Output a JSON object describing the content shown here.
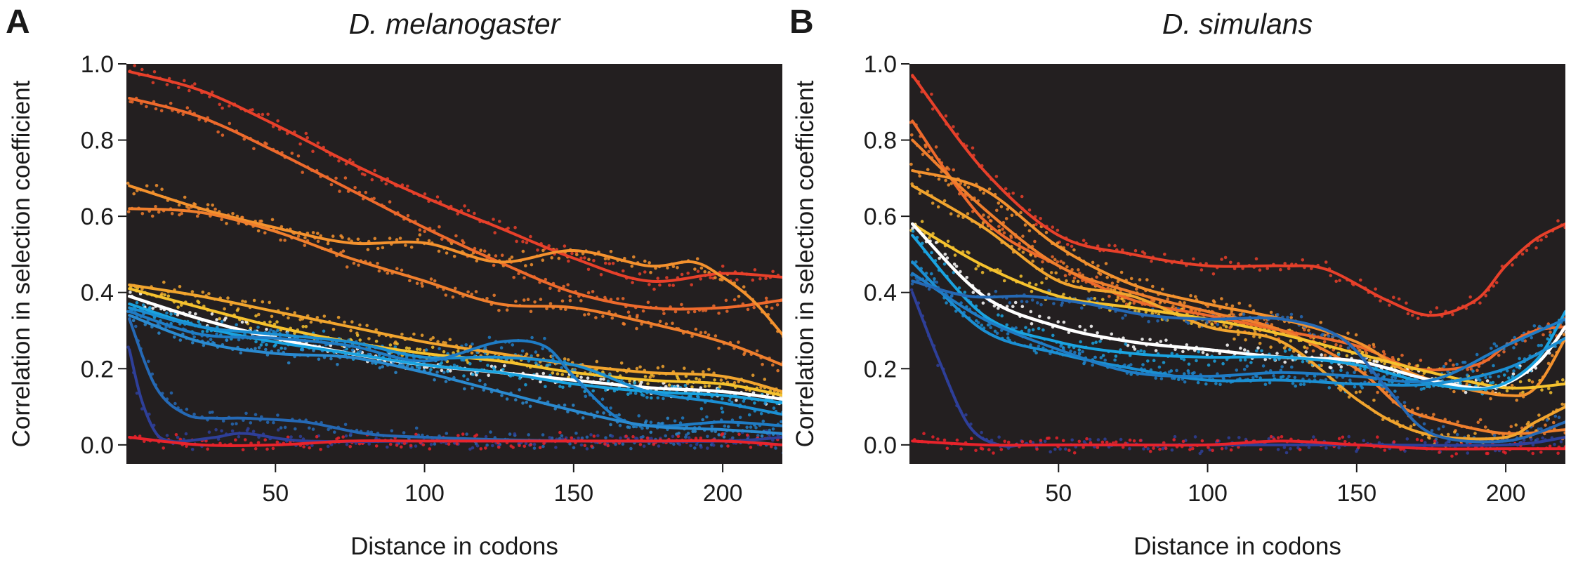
{
  "chart_data": [
    {
      "type": "line",
      "panel_letter": "A",
      "title": "D. melanogaster",
      "xlabel": "Distance in codons",
      "ylabel": "Correlation in selection coefficient",
      "xlim": [
        0,
        220
      ],
      "ylim": [
        -0.05,
        1.0
      ],
      "xticks": [
        50,
        100,
        150,
        200
      ],
      "yticks": [
        0.0,
        0.2,
        0.4,
        0.6,
        0.8,
        1.0
      ],
      "ytick_labels": [
        "0.0",
        "0.2",
        "0.4",
        "0.6",
        "0.8",
        "1.0"
      ],
      "background": "#231f20",
      "grid": false,
      "legend": "none",
      "series": [
        {
          "color": "#e8402a",
          "x": [
            1,
            25,
            50,
            75,
            100,
            125,
            150,
            175,
            200,
            220
          ],
          "y": [
            0.98,
            0.93,
            0.84,
            0.74,
            0.65,
            0.57,
            0.49,
            0.43,
            0.45,
            0.44
          ]
        },
        {
          "color": "#ee6a2c",
          "x": [
            1,
            25,
            50,
            75,
            100,
            125,
            150,
            175,
            200,
            220
          ],
          "y": [
            0.91,
            0.86,
            0.77,
            0.67,
            0.57,
            0.48,
            0.4,
            0.36,
            0.36,
            0.38
          ]
        },
        {
          "color": "#f4922e",
          "x": [
            1,
            25,
            50,
            75,
            100,
            125,
            150,
            175,
            190,
            200,
            210,
            220
          ],
          "y": [
            0.68,
            0.62,
            0.57,
            0.53,
            0.53,
            0.48,
            0.51,
            0.47,
            0.48,
            0.44,
            0.38,
            0.29
          ]
        },
        {
          "color": "#f07f2d",
          "x": [
            1,
            25,
            50,
            75,
            100,
            125,
            150,
            175,
            200,
            220
          ],
          "y": [
            0.62,
            0.61,
            0.56,
            0.49,
            0.43,
            0.37,
            0.36,
            0.32,
            0.27,
            0.21
          ]
        },
        {
          "color": "#f2a52e",
          "x": [
            1,
            25,
            50,
            75,
            100,
            125,
            150,
            175,
            200,
            220
          ],
          "y": [
            0.42,
            0.39,
            0.35,
            0.31,
            0.27,
            0.24,
            0.21,
            0.19,
            0.18,
            0.14
          ]
        },
        {
          "color": "#f6c22e",
          "x": [
            1,
            25,
            50,
            75,
            100,
            125,
            150,
            175,
            200,
            220
          ],
          "y": [
            0.41,
            0.36,
            0.31,
            0.27,
            0.24,
            0.22,
            0.19,
            0.17,
            0.16,
            0.13
          ]
        },
        {
          "color": "#ffffff",
          "x": [
            1,
            25,
            50,
            75,
            100,
            125,
            150,
            175,
            200,
            220
          ],
          "y": [
            0.39,
            0.33,
            0.28,
            0.24,
            0.21,
            0.19,
            0.17,
            0.15,
            0.14,
            0.12
          ]
        },
        {
          "color": "#1aa3e0",
          "x": [
            1,
            25,
            50,
            75,
            100,
            125,
            150,
            175,
            200,
            220
          ],
          "y": [
            0.37,
            0.31,
            0.27,
            0.24,
            0.21,
            0.19,
            0.16,
            0.14,
            0.13,
            0.11
          ]
        },
        {
          "color": "#1b8fd3",
          "x": [
            1,
            25,
            50,
            75,
            100,
            125,
            150,
            175,
            200,
            220
          ],
          "y": [
            0.36,
            0.31,
            0.29,
            0.27,
            0.23,
            0.23,
            0.21,
            0.14,
            0.11,
            0.08
          ]
        },
        {
          "color": "#1f7cc5",
          "x": [
            1,
            25,
            50,
            75,
            100,
            125,
            140,
            150,
            165,
            180,
            200,
            220
          ],
          "y": [
            0.35,
            0.29,
            0.28,
            0.26,
            0.22,
            0.27,
            0.26,
            0.18,
            0.07,
            0.05,
            0.06,
            0.05
          ]
        },
        {
          "color": "#2a8ad0",
          "x": [
            1,
            25,
            50,
            75,
            100,
            125,
            150,
            175,
            200,
            220
          ],
          "y": [
            0.34,
            0.27,
            0.24,
            0.23,
            0.19,
            0.14,
            0.09,
            0.05,
            0.04,
            0.03
          ]
        },
        {
          "color": "#2569b5",
          "x": [
            1,
            10,
            20,
            30,
            40,
            60,
            80,
            100,
            150,
            200,
            220
          ],
          "y": [
            0.33,
            0.15,
            0.08,
            0.07,
            0.07,
            0.06,
            0.03,
            0.02,
            0.01,
            0.01,
            0.0
          ]
        },
        {
          "color": "#2e3f99",
          "x": [
            1,
            5,
            10,
            15,
            20,
            30,
            40,
            60,
            100,
            150,
            200,
            220
          ],
          "y": [
            0.25,
            0.12,
            0.03,
            0.01,
            0.01,
            0.02,
            0.03,
            0.01,
            0.01,
            0.01,
            0.01,
            0.02
          ]
        },
        {
          "color": "#e8232b",
          "x": [
            1,
            25,
            50,
            75,
            100,
            125,
            150,
            175,
            200,
            220
          ],
          "y": [
            0.02,
            0.0,
            0.0,
            0.01,
            0.01,
            0.01,
            0.01,
            0.01,
            0.01,
            0.0
          ]
        }
      ]
    },
    {
      "type": "line",
      "panel_letter": "B",
      "title": "D. simulans",
      "xlabel": "Distance in codons",
      "ylabel": "Correlation in selection coefficient",
      "xlim": [
        0,
        220
      ],
      "ylim": [
        -0.05,
        1.0
      ],
      "xticks": [
        50,
        100,
        150,
        200
      ],
      "yticks": [
        0.0,
        0.2,
        0.4,
        0.6,
        0.8,
        1.0
      ],
      "ytick_labels": [
        "0.0",
        "0.2",
        "0.4",
        "0.6",
        "0.8",
        "1.0"
      ],
      "background": "#231f20",
      "grid": false,
      "legend": "none",
      "series": [
        {
          "color": "#e8402a",
          "x": [
            1,
            25,
            50,
            75,
            100,
            125,
            140,
            160,
            175,
            190,
            200,
            210,
            220
          ],
          "y": [
            0.97,
            0.72,
            0.55,
            0.5,
            0.47,
            0.47,
            0.46,
            0.38,
            0.34,
            0.38,
            0.47,
            0.54,
            0.58
          ]
        },
        {
          "color": "#ee6a2c",
          "x": [
            1,
            25,
            50,
            75,
            100,
            125,
            150,
            170,
            190,
            200,
            210,
            220
          ],
          "y": [
            0.85,
            0.59,
            0.47,
            0.38,
            0.34,
            0.3,
            0.26,
            0.2,
            0.21,
            0.26,
            0.3,
            0.31
          ]
        },
        {
          "color": "#f07f2d",
          "x": [
            1,
            25,
            50,
            75,
            100,
            125,
            150,
            165,
            180,
            200,
            220
          ],
          "y": [
            0.8,
            0.62,
            0.47,
            0.4,
            0.35,
            0.3,
            0.2,
            0.1,
            0.06,
            0.03,
            0.04
          ]
        },
        {
          "color": "#f4922e",
          "x": [
            1,
            25,
            50,
            75,
            100,
            125,
            150,
            165,
            180,
            200,
            210,
            220
          ],
          "y": [
            0.72,
            0.67,
            0.52,
            0.42,
            0.37,
            0.33,
            0.27,
            0.2,
            0.16,
            0.13,
            0.15,
            0.28
          ]
        },
        {
          "color": "#f2a52e",
          "x": [
            1,
            25,
            50,
            75,
            100,
            125,
            150,
            165,
            180,
            200,
            210,
            220
          ],
          "y": [
            0.68,
            0.57,
            0.43,
            0.39,
            0.31,
            0.27,
            0.12,
            0.05,
            0.02,
            0.02,
            0.06,
            0.1
          ]
        },
        {
          "color": "#f6c22e",
          "x": [
            1,
            25,
            50,
            75,
            100,
            125,
            150,
            175,
            200,
            220
          ],
          "y": [
            0.58,
            0.47,
            0.39,
            0.36,
            0.33,
            0.29,
            0.24,
            0.19,
            0.15,
            0.16
          ]
        },
        {
          "color": "#ffffff",
          "x": [
            1,
            25,
            50,
            75,
            100,
            125,
            150,
            175,
            195,
            210,
            220
          ],
          "y": [
            0.58,
            0.39,
            0.31,
            0.27,
            0.25,
            0.23,
            0.22,
            0.17,
            0.15,
            0.21,
            0.31
          ]
        },
        {
          "color": "#1aa3e0",
          "x": [
            1,
            25,
            50,
            75,
            100,
            125,
            150,
            175,
            195,
            210,
            220
          ],
          "y": [
            0.55,
            0.34,
            0.27,
            0.24,
            0.23,
            0.23,
            0.21,
            0.16,
            0.15,
            0.22,
            0.35
          ]
        },
        {
          "color": "#1b8fd3",
          "x": [
            1,
            25,
            50,
            75,
            100,
            125,
            150,
            175,
            200,
            220
          ],
          "y": [
            0.48,
            0.3,
            0.24,
            0.2,
            0.17,
            0.17,
            0.16,
            0.16,
            0.2,
            0.28
          ]
        },
        {
          "color": "#1f7cc5",
          "x": [
            1,
            25,
            50,
            75,
            100,
            125,
            150,
            175,
            200,
            220
          ],
          "y": [
            0.45,
            0.33,
            0.25,
            0.19,
            0.18,
            0.19,
            0.18,
            0.17,
            0.26,
            0.33
          ]
        },
        {
          "color": "#2569b5",
          "x": [
            1,
            20,
            40,
            60,
            80,
            100,
            125,
            145,
            160,
            175,
            200,
            220
          ],
          "y": [
            0.43,
            0.39,
            0.39,
            0.37,
            0.34,
            0.33,
            0.33,
            0.28,
            0.15,
            0.03,
            0.01,
            0.06
          ]
        },
        {
          "color": "#2e3f99",
          "x": [
            1,
            10,
            20,
            30,
            40,
            60,
            100,
            150,
            200,
            220
          ],
          "y": [
            0.4,
            0.22,
            0.05,
            0.0,
            0.0,
            0.0,
            0.0,
            0.0,
            0.0,
            0.02
          ]
        },
        {
          "color": "#e8232b",
          "x": [
            1,
            25,
            50,
            75,
            100,
            125,
            150,
            175,
            200,
            220
          ],
          "y": [
            0.01,
            0.0,
            0.0,
            0.0,
            0.0,
            0.01,
            0.0,
            -0.01,
            -0.01,
            -0.01
          ]
        }
      ]
    }
  ]
}
